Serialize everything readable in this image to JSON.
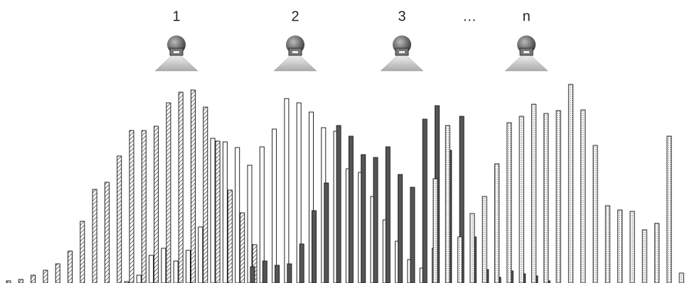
{
  "nozzles": [
    {
      "label": "1"
    },
    {
      "label": "2"
    },
    {
      "label": "3"
    },
    {
      "label": "…"
    },
    {
      "label": "n"
    }
  ],
  "distributions": [
    {
      "color": "#ffffff",
      "values": [
        3,
        5,
        11,
        18,
        27,
        45,
        87,
        132,
        142,
        179,
        215,
        215,
        221,
        254,
        269,
        272,
        248,
        200,
        131,
        99,
        54
      ]
    },
    {
      "color": "#ffffff",
      "values": [
        2,
        11,
        39,
        49,
        31,
        46,
        79,
        204,
        199,
        191,
        166,
        192,
        217,
        260,
        254,
        241,
        219,
        214,
        161,
        156,
        122,
        89,
        59,
        33,
        21,
        49
      ]
    },
    {
      "color": "#555555",
      "values": [
        23,
        31,
        25,
        27,
        55,
        102,
        141,
        222,
        207,
        181,
        177,
        192,
        153,
        135,
        231,
        250,
        187,
        235,
        65,
        19,
        8,
        17,
        13,
        10,
        3
      ]
    },
    {
      "color": "#d0d0d0",
      "values": [
        147,
        222,
        65,
        98,
        122,
        168,
        226,
        235,
        252,
        239,
        243,
        280,
        244,
        194,
        109,
        103,
        101,
        75,
        84,
        207,
        14
      ]
    }
  ]
}
